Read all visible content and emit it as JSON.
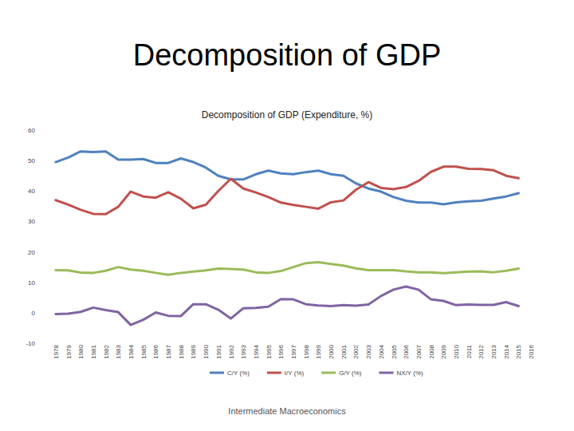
{
  "slide": {
    "title": "Decomposition of GDP",
    "footer": "Intermediate Macroeconomics"
  },
  "chart_data": {
    "type": "line",
    "title": "Decomposition of GDP (Expenditure, %)",
    "categories": [
      "1978",
      "1979",
      "1980",
      "1981",
      "1982",
      "1983",
      "1984",
      "1985",
      "1986",
      "1987",
      "1988",
      "1989",
      "1990",
      "1991",
      "1992",
      "1993",
      "1994",
      "1995",
      "1996",
      "1997",
      "1998",
      "1999",
      "2000",
      "2001",
      "2002",
      "2003",
      "2004",
      "2005",
      "2006",
      "2007",
      "2008",
      "2009",
      "2010",
      "2011",
      "2012",
      "2013",
      "2014",
      "2015",
      "2016"
    ],
    "series": [
      {
        "name": "C/Y (%)",
        "color": "#4f81bd",
        "values": [
          49.5,
          51,
          53,
          52.8,
          53,
          50.3,
          50.3,
          50.5,
          49.2,
          49.2,
          50.7,
          49.5,
          47.7,
          45,
          43.8,
          43.8,
          45.5,
          46.7,
          45.8,
          45.5,
          46.2,
          46.7,
          45.5,
          45,
          42.5,
          40.8,
          39.8,
          38,
          36.8,
          36.2,
          36.2,
          35.6,
          36.3,
          36.6,
          36.8,
          37.5,
          38.2,
          39.3,
          null
        ]
      },
      {
        "name": "I/Y (%)",
        "color": "#c0504d",
        "values": [
          37,
          35.5,
          33.8,
          32.5,
          32.4,
          34.8,
          39.8,
          38.2,
          37.8,
          39.6,
          37.5,
          34.3,
          35.5,
          40,
          44,
          40.8,
          39.5,
          38,
          36.2,
          35.4,
          34.8,
          34.2,
          36.3,
          36.9,
          40.4,
          42.9,
          41,
          40.6,
          41.3,
          43.3,
          46.3,
          48,
          48,
          47.3,
          47.2,
          46.8,
          45,
          44.2,
          null
        ]
      },
      {
        "name": "G/Y (%)",
        "color": "#9bbb59",
        "values": [
          14,
          13.9,
          13.2,
          13.1,
          13.8,
          15,
          14.2,
          13.8,
          13.1,
          12.5,
          13.1,
          13.5,
          13.9,
          14.5,
          14.4,
          14.2,
          13.3,
          13.1,
          13.7,
          15,
          16.3,
          16.6,
          16,
          15.5,
          14.6,
          14,
          14,
          14,
          13.6,
          13.3,
          13.3,
          13,
          13.3,
          13.5,
          13.6,
          13.3,
          13.8,
          14.5,
          null
        ]
      },
      {
        "name": "NX/Y (%)",
        "color": "#8064a2",
        "values": [
          -0.4,
          -0.3,
          0.3,
          1.7,
          0.9,
          0.2,
          -4,
          -2.3,
          0.1,
          -1,
          -1.1,
          2.8,
          2.8,
          1,
          -1.9,
          1.5,
          1.6,
          2,
          4.5,
          4.4,
          2.8,
          2.4,
          2.2,
          2.5,
          2.3,
          2.7,
          5.5,
          7.6,
          8.6,
          7.6,
          4.4,
          3.9,
          2.5,
          2.7,
          2.6,
          2.6,
          3.5,
          2.2,
          null
        ]
      }
    ],
    "ylim": [
      -10,
      60
    ],
    "yticks": [
      -10,
      0,
      10,
      20,
      30,
      40,
      50,
      60
    ],
    "grid": false,
    "legend": "bottom"
  }
}
